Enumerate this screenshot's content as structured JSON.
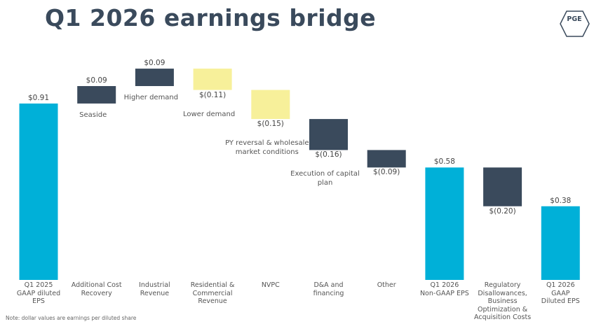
{
  "header": {
    "logo": "PGE"
  },
  "chart_data": {
    "type": "waterfall",
    "title": "Q1 2026 earnings bridge",
    "categories": [
      "Q1 2025\nGAAP diluted\nEPS",
      "Additional Cost\nRecovery",
      "Industrial\nRevenue",
      "Residential &\nCommercial\nRevenue",
      "NVPC",
      "D&A and\nfinancing",
      "Other",
      "Q1 2026\nNon-GAAP EPS",
      "Regulatory\nDisallowances,\nBusiness\nOptimization &\nAcquisition Costs",
      "Q1 2026\nGAAP\nDiluted EPS"
    ],
    "values": [
      0.91,
      0.09,
      0.09,
      -0.11,
      -0.15,
      -0.16,
      -0.09,
      0.58,
      -0.2,
      0.38
    ],
    "value_labels": [
      "$0.91",
      "$0.09",
      "$0.09",
      "$(0.11)",
      "$(0.15)",
      "$(0.16)",
      "$(0.09)",
      "$0.58",
      "$(0.20)",
      "$0.38"
    ],
    "measure": [
      "absolute",
      "relative",
      "relative",
      "relative",
      "relative",
      "relative",
      "relative",
      "absolute",
      "relative",
      "absolute"
    ],
    "colors": [
      "#00b0d8",
      "#3a4a5c",
      "#3a4a5c",
      "#f7f09a",
      "#f7f09a",
      "#3a4a5c",
      "#3a4a5c",
      "#00b0d8",
      "#3a4a5c",
      "#00b0d8"
    ],
    "annotations": [
      null,
      "Seaside",
      "Higher demand",
      "Lower demand",
      "PY reversal & wholesale\nmarket conditions",
      "Execution of capital\nplan",
      null,
      null,
      null,
      null
    ],
    "ylim": [
      0,
      1.2
    ],
    "note": "Note: dollar values are earnings per diluted share"
  }
}
